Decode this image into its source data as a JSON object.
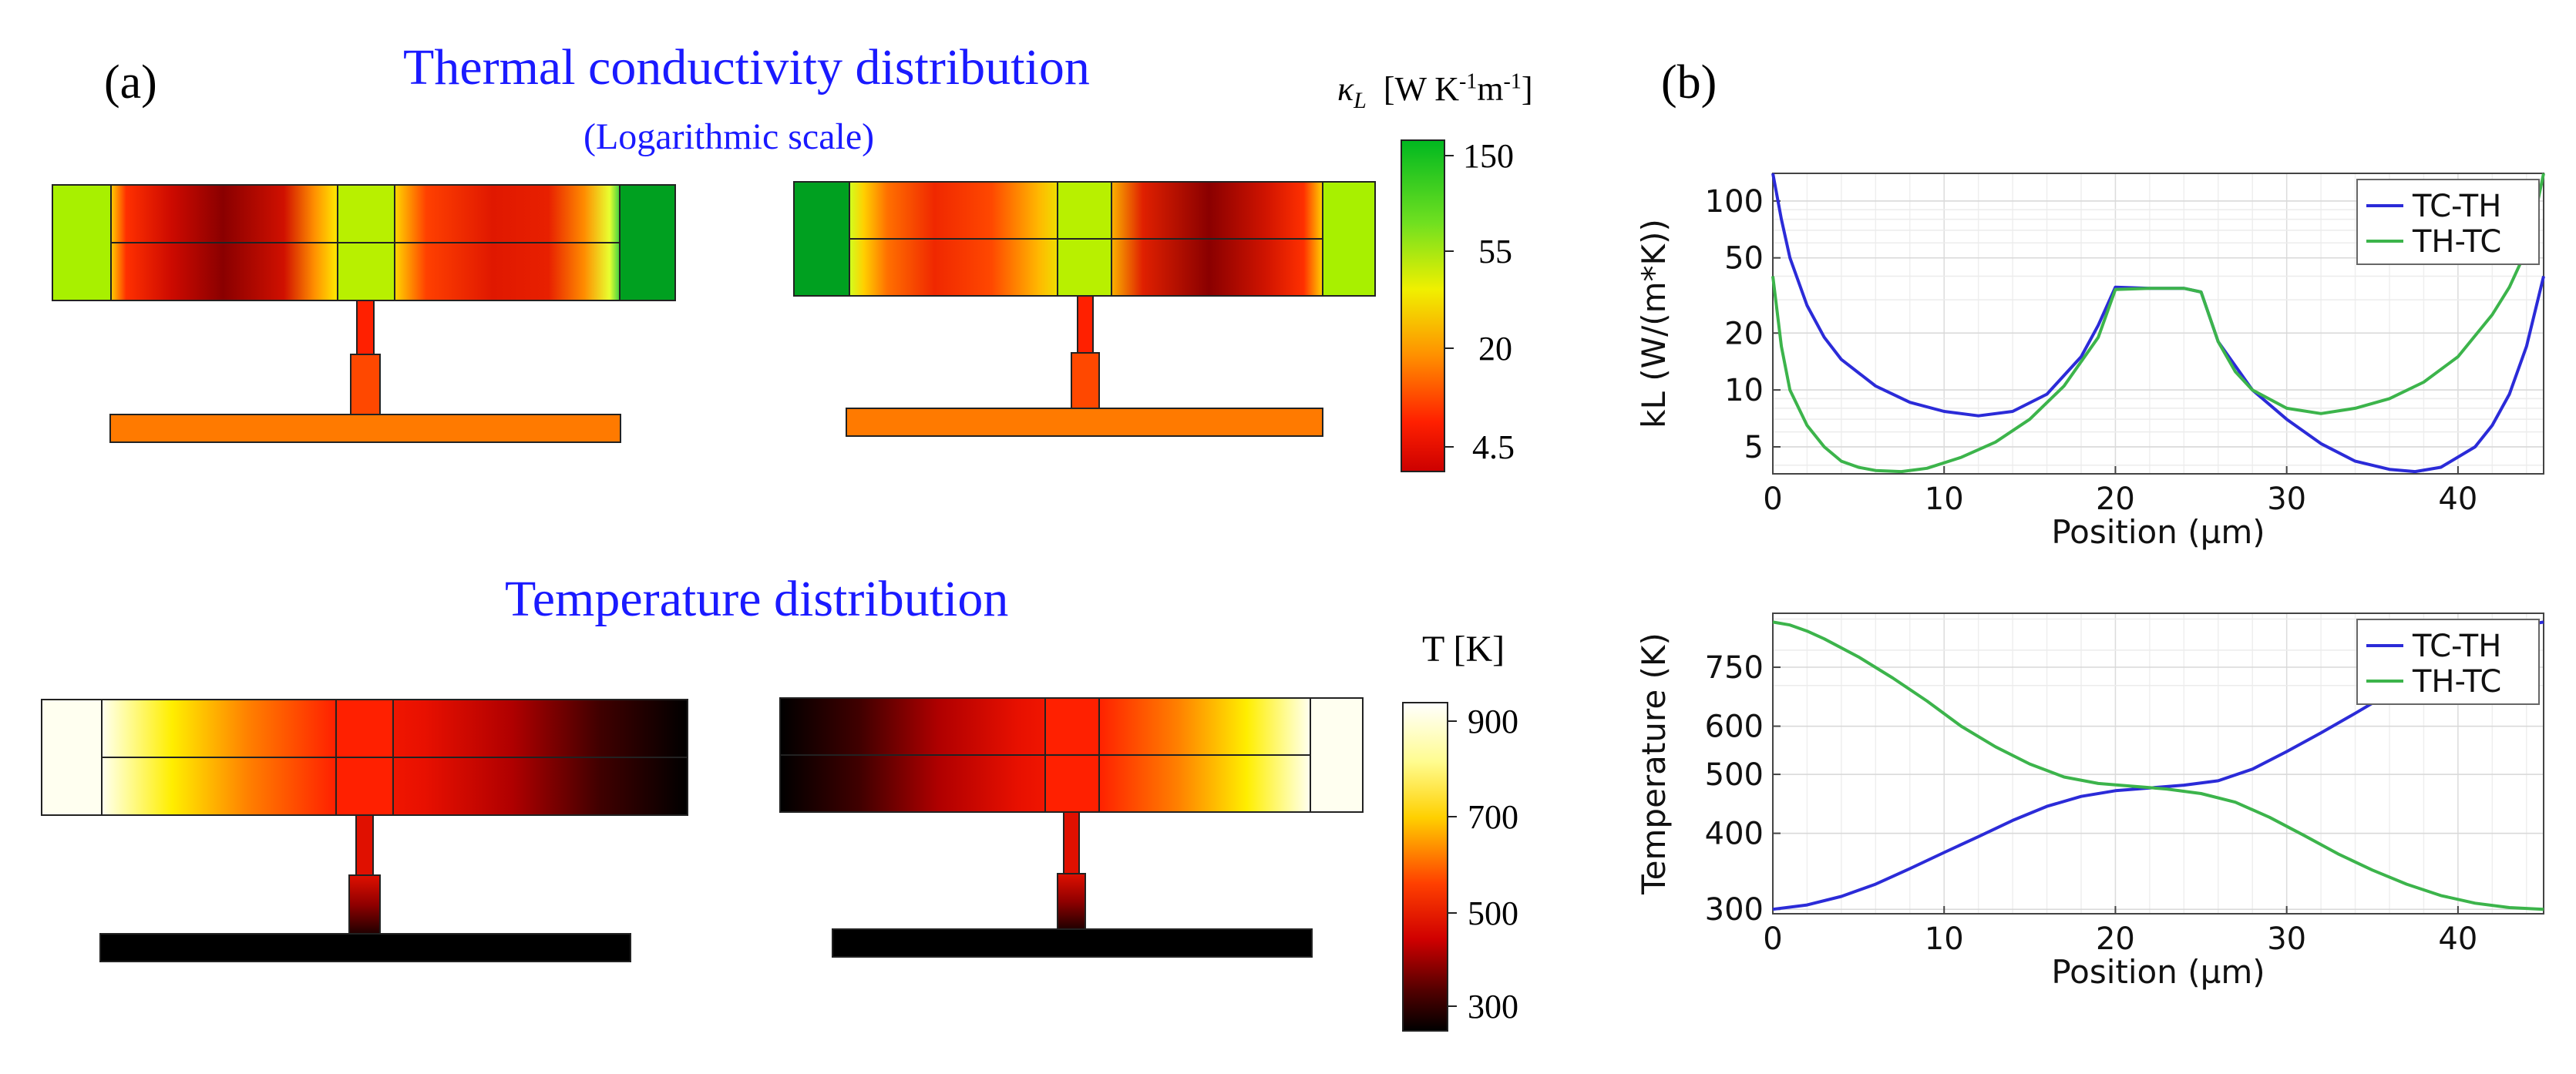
{
  "panel_a": {
    "label": "(a)",
    "title_top": "Thermal conductivity distribution",
    "subtitle_top": "(Logarithmic scale)",
    "title_bottom": "Temperature distribution",
    "kappa_colorbar": {
      "label_prefix": "κ",
      "label_sub": "L",
      "label_unit": "[W K",
      "label_exp1": "-1",
      "label_mid": "m",
      "label_exp2": "-1",
      "label_end": "]",
      "ticks": [
        "150",
        "55",
        "20",
        "4.5"
      ],
      "scale": "log"
    },
    "temp_colorbar": {
      "label": "T  [K]",
      "ticks": [
        "900",
        "700",
        "500",
        "300"
      ]
    },
    "colors": {
      "kappa_high": "#00b020",
      "kappa_mid": "#f5f500",
      "kappa_low": "#cc0000",
      "temp_high": "#fffff0",
      "temp_mid": "#ff2200",
      "temp_low": "#000000"
    }
  },
  "panel_b": {
    "label": "(b)"
  },
  "chart_data": [
    {
      "type": "line",
      "xlabel": "Position (µm)",
      "ylabel": "kL (W/(m*K))",
      "yscale": "log",
      "xlim": [
        0,
        45
      ],
      "ylim": [
        3.6,
        140
      ],
      "xticks": [
        "0",
        "10",
        "20",
        "30",
        "40"
      ],
      "yticks": [
        {
          "v": 5,
          "label": "5"
        },
        {
          "v": 10,
          "label": "10"
        },
        {
          "v": 20,
          "label": "20"
        },
        {
          "v": 50,
          "label": "50"
        },
        {
          "v": 100,
          "label": "100"
        }
      ],
      "grid": true,
      "legend": "top-right",
      "series": [
        {
          "name": "TC-TH",
          "color": "#2b2bd8",
          "x": [
            0,
            0.5,
            1,
            2,
            3,
            4,
            6,
            8,
            10,
            12,
            14,
            16,
            18,
            19,
            20,
            22,
            24,
            25,
            26,
            28,
            30,
            32,
            34,
            36,
            37.5,
            39,
            41,
            42,
            43,
            44,
            45
          ],
          "y": [
            140,
            80,
            50,
            28,
            19,
            14.5,
            10.5,
            8.6,
            7.7,
            7.3,
            7.7,
            9.5,
            15,
            22,
            35,
            34.5,
            34.5,
            33,
            18,
            10,
            7,
            5.2,
            4.2,
            3.8,
            3.7,
            3.9,
            5,
            6.5,
            9.5,
            17,
            40
          ]
        },
        {
          "name": "TH-TC",
          "color": "#3cb44b",
          "x": [
            0,
            0.5,
            1,
            2,
            3,
            4,
            5,
            6,
            7.5,
            9,
            11,
            13,
            15,
            17,
            19,
            20,
            22,
            24,
            25,
            26,
            27,
            28,
            30,
            32,
            34,
            36,
            38,
            40,
            42,
            43,
            44,
            44.5,
            45
          ],
          "y": [
            40,
            17,
            10,
            6.5,
            5,
            4.2,
            3.9,
            3.75,
            3.7,
            3.85,
            4.4,
            5.3,
            7,
            10.5,
            19,
            34,
            34.5,
            34.5,
            33,
            18,
            12.5,
            10,
            8,
            7.5,
            8,
            9,
            11,
            15,
            25,
            35,
            55,
            85,
            140
          ]
        }
      ]
    },
    {
      "type": "line",
      "xlabel": "Position (µm)",
      "ylabel": "Temperature (K)",
      "yscale": "log",
      "xlim": [
        0,
        45
      ],
      "ylim": [
        295,
        920
      ],
      "xticks": [
        "0",
        "10",
        "20",
        "30",
        "40"
      ],
      "yticks": [
        {
          "v": 300,
          "label": "300"
        },
        {
          "v": 400,
          "label": "400"
        },
        {
          "v": 500,
          "label": "500"
        },
        {
          "v": 600,
          "label": "600"
        },
        {
          "v": 750,
          "label": "750"
        }
      ],
      "grid": true,
      "legend": "top-right",
      "series": [
        {
          "name": "TC-TH",
          "color": "#2b2bd8",
          "x": [
            0,
            2,
            4,
            6,
            8,
            10,
            12,
            14,
            16,
            18,
            20,
            22,
            24,
            26,
            28,
            30,
            32,
            34,
            36,
            38,
            40,
            42,
            43,
            44,
            45
          ],
          "y": [
            300,
            305,
            315,
            330,
            350,
            372,
            395,
            420,
            443,
            460,
            470,
            475,
            480,
            488,
            510,
            545,
            585,
            630,
            680,
            730,
            780,
            830,
            860,
            880,
            890
          ]
        },
        {
          "name": "TH-TC",
          "color": "#3cb44b",
          "x": [
            0,
            1,
            2,
            3,
            5,
            7,
            9,
            11,
            13,
            15,
            17,
            19,
            21,
            23,
            25,
            27,
            29,
            31,
            33,
            35,
            37,
            39,
            41,
            43,
            45
          ],
          "y": [
            890,
            880,
            860,
            835,
            780,
            720,
            660,
            600,
            555,
            520,
            495,
            483,
            478,
            473,
            465,
            450,
            425,
            397,
            370,
            348,
            330,
            316,
            307,
            302,
            300
          ]
        }
      ]
    }
  ]
}
